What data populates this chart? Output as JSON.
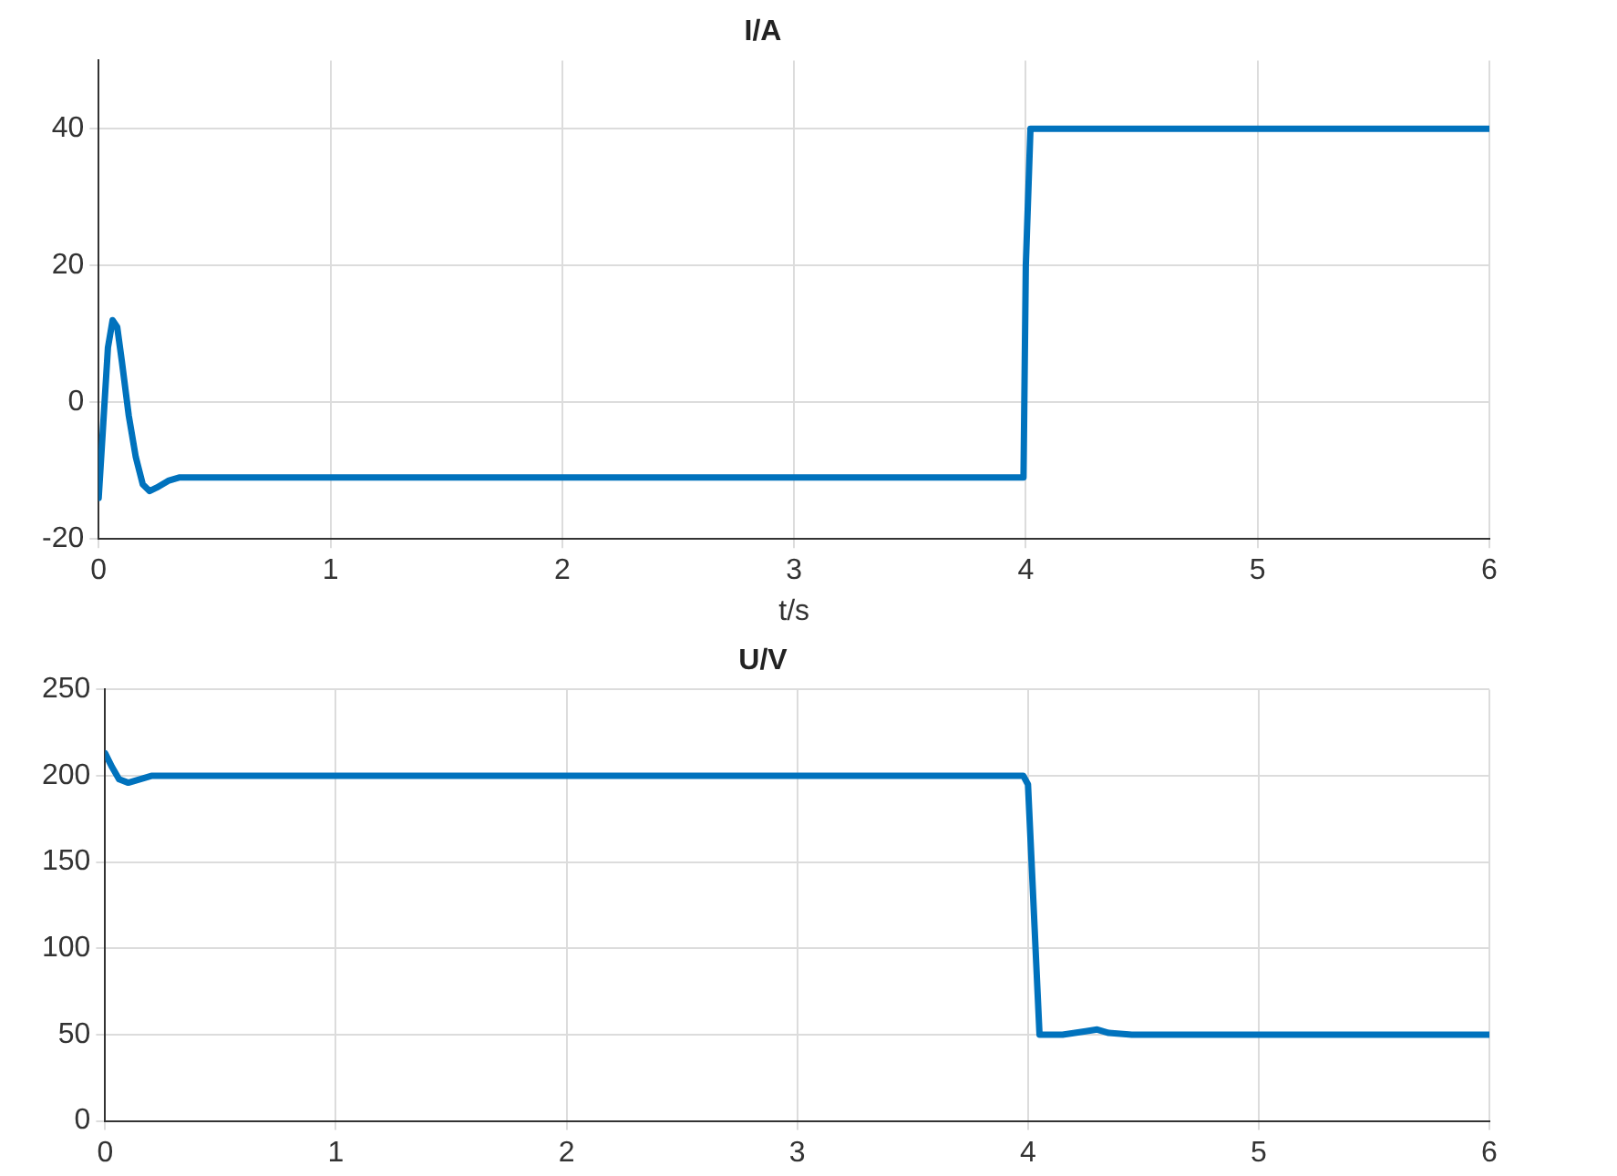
{
  "chart_data": [
    {
      "type": "line",
      "title": "I/A",
      "xlabel": "t/s",
      "xlim": [
        0,
        6
      ],
      "xticks": [
        0,
        1,
        2,
        3,
        4,
        5,
        6
      ],
      "ylim": [
        -20,
        50
      ],
      "yticks": [
        -20,
        0,
        20,
        40
      ],
      "grid": true,
      "legend": false,
      "marker": "none",
      "line_style": "solid",
      "series": [
        {
          "color": "#0072bd",
          "x": [
            0,
            0.02,
            0.04,
            0.06,
            0.08,
            0.1,
            0.13,
            0.16,
            0.19,
            0.22,
            0.25,
            0.3,
            0.35,
            0.4,
            0.5,
            1,
            2,
            3,
            3.99,
            4.0,
            4.02,
            4.5,
            5,
            6
          ],
          "values": [
            -14,
            -3,
            8,
            12,
            11,
            6,
            -2,
            -8,
            -12,
            -13,
            -12.5,
            -11.5,
            -11,
            -11,
            -11,
            -11,
            -11,
            -11,
            -11,
            20,
            40,
            40,
            40,
            40
          ]
        }
      ]
    },
    {
      "type": "line",
      "title": "U/V",
      "xlim": [
        0,
        6
      ],
      "xticks": [
        0,
        1,
        2,
        3,
        4,
        5,
        6
      ],
      "ylim": [
        0,
        250
      ],
      "yticks": [
        0,
        50,
        100,
        150,
        200,
        250
      ],
      "grid": true,
      "legend": false,
      "marker": "none",
      "line_style": "solid",
      "series": [
        {
          "color": "#0072bd",
          "x": [
            0,
            0.03,
            0.06,
            0.1,
            0.15,
            0.2,
            0.3,
            0.5,
            1,
            2,
            3,
            3.98,
            4.0,
            4.05,
            4.15,
            4.25,
            4.3,
            4.35,
            4.45,
            5,
            6
          ],
          "values": [
            213,
            205,
            198,
            196,
            198,
            200,
            200,
            200,
            200,
            200,
            200,
            200,
            195,
            50,
            50,
            52,
            53,
            51,
            50,
            50,
            50
          ]
        }
      ]
    }
  ]
}
